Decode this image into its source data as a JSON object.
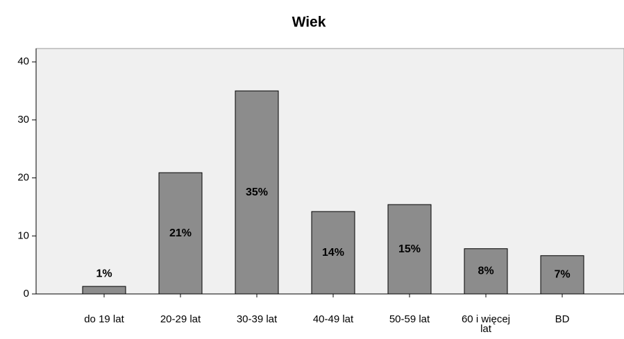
{
  "chart_data": {
    "type": "bar",
    "title": "Wiek",
    "categories": [
      "do 19 lat",
      "20-29 lat",
      "30-39 lat",
      "40-49 lat",
      "50-59 lat",
      "60 i więcej lat",
      "BD"
    ],
    "values": [
      1.3,
      20.9,
      35.0,
      14.2,
      15.4,
      7.8,
      6.6
    ],
    "value_labels": [
      "1%",
      "21%",
      "35%",
      "14%",
      "15%",
      "8%",
      "7%"
    ],
    "color": "#8c8c8c",
    "ylim": [
      0,
      42.3
    ],
    "yticks": [
      0,
      10,
      20,
      30,
      40
    ],
    "grid": false
  }
}
